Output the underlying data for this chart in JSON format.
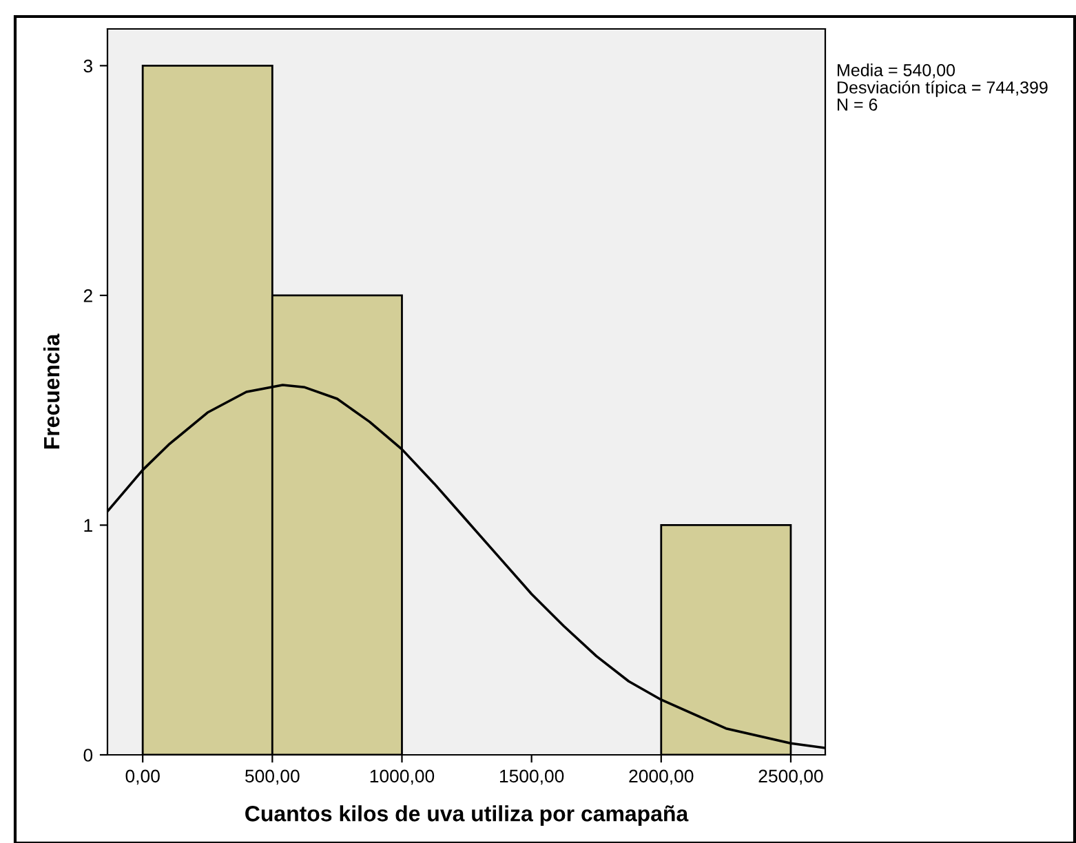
{
  "chart_data": {
    "type": "histogram",
    "xlabel": "Cuantos kilos de uva utiliza por camapaña",
    "ylabel": "Frecuencia",
    "annotations": [
      "Media = 540,00",
      "Desviación típica = 744,399",
      "N = 6"
    ],
    "series": [
      {
        "color": "#d3ce97",
        "bins": [
          0,
          500,
          1000,
          1500,
          2000,
          2500
        ],
        "values": [
          3,
          2,
          0,
          0,
          1
        ]
      },
      {
        "type": "line",
        "color": "#000000",
        "x": [
          -136,
          0,
          100,
          250,
          400,
          540,
          625,
          750,
          875,
          1000,
          1125,
          1250,
          1375,
          1500,
          1625,
          1750,
          1875,
          2000,
          2250,
          2500,
          2633
        ],
        "values": [
          1.06,
          1.24,
          1.35,
          1.49,
          1.58,
          1.61,
          1.6,
          1.55,
          1.45,
          1.33,
          1.18,
          1.02,
          0.86,
          0.7,
          0.56,
          0.43,
          0.32,
          0.24,
          0.115,
          0.05,
          0.03
        ]
      }
    ],
    "xlim": [
      -136,
      2633
    ],
    "ylim": [
      0,
      3.16
    ],
    "xticks": [
      {
        "value": 0,
        "label": "0,00"
      },
      {
        "value": 500,
        "label": "500,00"
      },
      {
        "value": 1000,
        "label": "1000,00"
      },
      {
        "value": 1500,
        "label": "1500,00"
      },
      {
        "value": 2000,
        "label": "2000,00"
      },
      {
        "value": 2500,
        "label": "2500,00"
      }
    ],
    "yticks": [
      0,
      1,
      2,
      3
    ],
    "grid": false,
    "legend": false
  }
}
